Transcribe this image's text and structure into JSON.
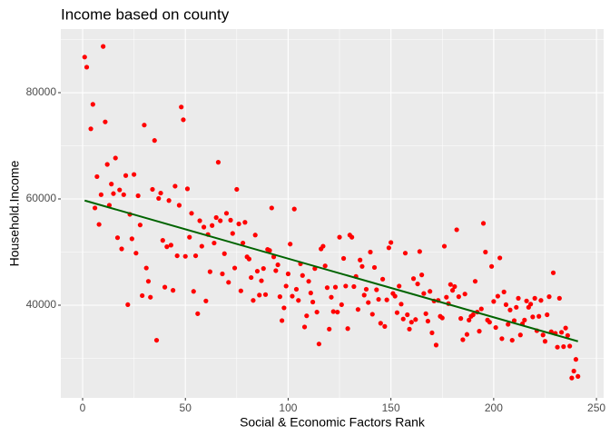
{
  "chart_data": {
    "type": "scatter",
    "title": "Income based on county",
    "x_label": "Social & Economic Factors Rank",
    "y_label": "Household.Income",
    "xlim": [
      -10.6,
      253.5
    ],
    "ylim": [
      22560,
      91970
    ],
    "xticks": [
      0,
      50,
      100,
      150,
      200,
      250
    ],
    "yticks": [
      40000,
      60000,
      80000
    ],
    "grid": true,
    "minor_grid": true,
    "background": "#ebebeb",
    "series": [
      {
        "type": "scatter",
        "color": "#ff0000",
        "x": [
          1,
          2,
          4,
          5,
          6,
          7,
          8,
          9,
          10,
          11,
          12,
          13,
          14,
          15,
          16,
          17,
          18,
          19,
          20,
          21,
          22,
          23,
          24,
          25,
          26,
          27,
          28,
          29,
          30,
          31,
          32,
          33,
          34,
          35,
          36,
          37,
          38,
          39,
          40,
          41,
          42,
          43,
          44,
          45,
          46,
          47,
          48,
          49,
          50,
          51,
          52,
          53,
          54,
          55,
          56,
          57,
          58,
          59,
          60,
          61,
          62,
          63,
          64,
          65,
          66,
          67,
          68,
          69,
          70,
          71,
          72,
          73,
          74,
          75,
          76,
          77,
          78,
          79,
          80,
          81,
          82,
          83,
          84,
          85,
          86,
          87,
          88,
          89,
          90,
          91,
          92,
          93,
          94,
          95,
          96,
          97,
          98,
          99,
          100,
          101,
          102,
          103,
          104,
          105,
          106,
          107,
          108,
          109,
          110,
          111,
          112,
          113,
          114,
          115,
          116,
          117,
          118,
          119,
          120,
          121,
          122,
          123,
          124,
          125,
          126,
          127,
          128,
          129,
          130,
          131,
          132,
          133,
          134,
          135,
          136,
          137,
          138,
          139,
          140,
          141,
          142,
          143,
          144,
          145,
          146,
          147,
          148,
          149,
          150,
          151,
          152,
          153,
          154,
          155,
          156,
          157,
          158,
          159,
          160,
          161,
          162,
          163,
          164,
          165,
          166,
          167,
          168,
          169,
          170,
          171,
          172,
          173,
          174,
          175,
          176,
          177,
          178,
          179,
          180,
          181,
          182,
          183,
          184,
          185,
          186,
          187,
          188,
          189,
          190,
          191,
          192,
          193,
          194,
          195,
          196,
          197,
          198,
          199,
          200,
          201,
          202,
          203,
          204,
          205,
          206,
          207,
          208,
          209,
          210,
          211,
          212,
          213,
          214,
          215,
          216,
          217,
          218,
          219,
          220,
          221,
          222,
          223,
          224,
          225,
          226,
          227,
          228,
          229,
          230,
          231,
          232,
          233,
          234,
          235,
          236,
          237,
          238,
          239,
          240,
          241
        ],
        "values": [
          86700,
          84800,
          73200,
          77800,
          58300,
          64200,
          55200,
          60800,
          88700,
          74500,
          66500,
          58800,
          62800,
          61000,
          67700,
          52700,
          61700,
          50600,
          60800,
          64400,
          40100,
          57100,
          52500,
          64600,
          49800,
          60600,
          55100,
          41800,
          73900,
          47000,
          44500,
          41500,
          61800,
          71000,
          33400,
          60100,
          61100,
          52200,
          43400,
          51000,
          59700,
          51300,
          42800,
          62400,
          49300,
          58800,
          77300,
          74900,
          49200,
          61900,
          52800,
          57300,
          42600,
          49300,
          38400,
          55900,
          51100,
          54700,
          40800,
          53300,
          46300,
          55000,
          51700,
          56500,
          66900,
          55900,
          45900,
          49700,
          57300,
          44300,
          56000,
          53500,
          47000,
          61800,
          55300,
          42700,
          51700,
          55600,
          49100,
          48700,
          45200,
          40900,
          53200,
          46400,
          41900,
          44600,
          46900,
          42000,
          50500,
          50300,
          58300,
          49100,
          46500,
          47600,
          41600,
          37100,
          39500,
          43600,
          45900,
          51500,
          41700,
          58100,
          43000,
          40900,
          47800,
          45600,
          35900,
          38000,
          44500,
          42300,
          40600,
          46900,
          38700,
          32700,
          50600,
          51100,
          47400,
          43300,
          35500,
          41500,
          38800,
          43400,
          38700,
          52800,
          40100,
          48800,
          43600,
          35600,
          53200,
          52800,
          43500,
          45400,
          39200,
          48500,
          47300,
          41900,
          43000,
          40500,
          50000,
          38300,
          47100,
          42900,
          41100,
          36600,
          44900,
          36000,
          41000,
          50800,
          51800,
          42200,
          41700,
          38600,
          43600,
          40200,
          37400,
          49800,
          38200,
          35500,
          36800,
          45000,
          37300,
          44000,
          50100,
          45700,
          42200,
          38400,
          37000,
          42600,
          34800,
          40800,
          32500,
          40900,
          37900,
          37600,
          51100,
          41500,
          40300,
          43900,
          42800,
          43500,
          54200,
          41600,
          37500,
          33500,
          42100,
          34500,
          37200,
          37900,
          38200,
          44500,
          38700,
          35100,
          39300,
          55400,
          50000,
          37200,
          36800,
          47300,
          40700,
          35800,
          41700,
          48900,
          33700,
          42500,
          40100,
          36400,
          39100,
          33400,
          37100,
          39600,
          41300,
          34400,
          36500,
          37200,
          40800,
          39600,
          40200,
          37800,
          41300,
          35200,
          37900,
          40900,
          34400,
          33200,
          38200,
          41600,
          35000,
          46100,
          34700,
          32100,
          41300,
          34900,
          32200,
          35700,
          34300,
          32300,
          26300,
          27600,
          29800,
          26600
        ]
      },
      {
        "type": "line",
        "color": "#006400",
        "x": [
          1,
          241
        ],
        "values": [
          59700,
          33200
        ]
      }
    ]
  }
}
